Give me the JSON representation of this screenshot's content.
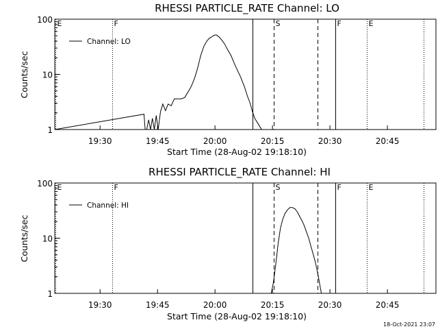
{
  "footer": {
    "timestamp": "18-Oct-2021 23:07"
  },
  "chart_data": [
    {
      "type": "line",
      "title": "RHESSI PARTICLE_RATE Channel: LO",
      "xlabel": "Start Time (28-Aug-02 19:18:10)",
      "ylabel": "Counts/sec",
      "x_unit": "minutes since start time",
      "x_ticks": [
        {
          "value": 11.83,
          "label": "19:30"
        },
        {
          "value": 26.83,
          "label": "19:45"
        },
        {
          "value": 41.83,
          "label": "20:00"
        },
        {
          "value": 56.83,
          "label": "20:15"
        },
        {
          "value": 71.83,
          "label": "20:30"
        },
        {
          "value": 86.83,
          "label": "20:45"
        }
      ],
      "xlim": [
        0,
        99.5
      ],
      "y_scale": "log",
      "ylim": [
        1,
        100
      ],
      "y_ticks": [
        {
          "value": 1,
          "label": "1"
        },
        {
          "value": 10,
          "label": "10"
        },
        {
          "value": 100,
          "label": "100"
        }
      ],
      "legend": "top-left",
      "series": [
        {
          "name": "Channel: LO",
          "color": "#000000",
          "x": [
            0,
            23.3,
            23.6,
            24.0,
            24.5,
            25.0,
            25.5,
            26.0,
            26.5,
            27.0,
            27.6,
            28.2,
            28.9,
            29.6,
            30.4,
            31.2,
            32.1,
            33.0,
            33.9,
            34.8,
            35.6,
            36.5,
            37.3,
            38.1,
            38.9,
            39.7,
            40.3,
            41.0,
            41.6,
            42.1,
            42.5,
            43.1,
            43.7,
            44.4,
            45.0,
            46.0,
            47.0,
            48.5,
            49.5,
            50.3,
            51.0,
            51.6,
            52.2,
            53.0,
            54.0,
            55.0,
            56.0,
            56.8,
            57.2,
            57.7
          ],
          "y": [
            1,
            1.9,
            1,
            1,
            1.5,
            1,
            1.6,
            1,
            1.8,
            1,
            2.1,
            2.9,
            2.2,
            2.9,
            2.7,
            3.6,
            3.6,
            3.6,
            3.8,
            4.8,
            6,
            8.5,
            13,
            22,
            32,
            40,
            45,
            48,
            51,
            52,
            50,
            46,
            41,
            35,
            29,
            22,
            15,
            9,
            6,
            4,
            3,
            2.1,
            1.6,
            1.3,
            1,
            1,
            1,
            1,
            1,
            1
          ]
        }
      ],
      "annotations": [
        {
          "x": 0.15,
          "label": "E",
          "style": "dotted"
        },
        {
          "x": 14.95,
          "label": "F",
          "style": "dotted"
        },
        {
          "x": 51.65,
          "label": "",
          "style": "solid"
        },
        {
          "x": 57.2,
          "label": "S",
          "style": "dashed"
        },
        {
          "x": 68.65,
          "label": "",
          "style": "dashed"
        },
        {
          "x": 73.2,
          "label": "F",
          "style": "solid"
        },
        {
          "x": 81.5,
          "label": "E",
          "style": "dotted"
        },
        {
          "x": 96.35,
          "label": "",
          "style": "dotted"
        }
      ]
    },
    {
      "type": "line",
      "title": "RHESSI PARTICLE_RATE Channel: HI",
      "xlabel": "Start Time (28-Aug-02 19:18:10)",
      "ylabel": "Counts/sec",
      "x_unit": "minutes since start time",
      "x_ticks": [
        {
          "value": 11.83,
          "label": "19:30"
        },
        {
          "value": 26.83,
          "label": "19:45"
        },
        {
          "value": 41.83,
          "label": "20:00"
        },
        {
          "value": 56.83,
          "label": "20:15"
        },
        {
          "value": 71.83,
          "label": "20:30"
        },
        {
          "value": 86.83,
          "label": "20:45"
        }
      ],
      "xlim": [
        0,
        99.5
      ],
      "y_scale": "log",
      "ylim": [
        1,
        100
      ],
      "y_ticks": [
        {
          "value": 1,
          "label": "1"
        },
        {
          "value": 10,
          "label": "10"
        },
        {
          "value": 100,
          "label": "100"
        }
      ],
      "legend": "top-left",
      "series": [
        {
          "name": "Channel: HI",
          "color": "#000000",
          "x": [
            0,
            56.5,
            57.1,
            57.7,
            58.3,
            58.9,
            59.5,
            60.1,
            60.8,
            61.4,
            62.0,
            62.7,
            63.3,
            63.9,
            64.5,
            65.1,
            65.7,
            66.3,
            66.9,
            67.5,
            68.1,
            68.7,
            69.3,
            69.6
          ],
          "y": [
            1,
            1,
            1.6,
            3.4,
            8,
            15,
            22,
            28,
            33,
            36,
            36,
            34,
            30,
            25,
            21,
            17,
            13,
            10,
            7,
            5,
            3.5,
            2.2,
            1.3,
            1
          ]
        }
      ],
      "annotations": [
        {
          "x": 0.15,
          "label": "E",
          "style": "dotted"
        },
        {
          "x": 14.95,
          "label": "F",
          "style": "dotted"
        },
        {
          "x": 51.65,
          "label": "",
          "style": "solid"
        },
        {
          "x": 57.2,
          "label": "S",
          "style": "dashed"
        },
        {
          "x": 68.65,
          "label": "",
          "style": "dashed"
        },
        {
          "x": 73.2,
          "label": "F",
          "style": "solid"
        },
        {
          "x": 81.5,
          "label": "E",
          "style": "dotted"
        },
        {
          "x": 96.35,
          "label": "",
          "style": "dotted"
        }
      ]
    }
  ]
}
